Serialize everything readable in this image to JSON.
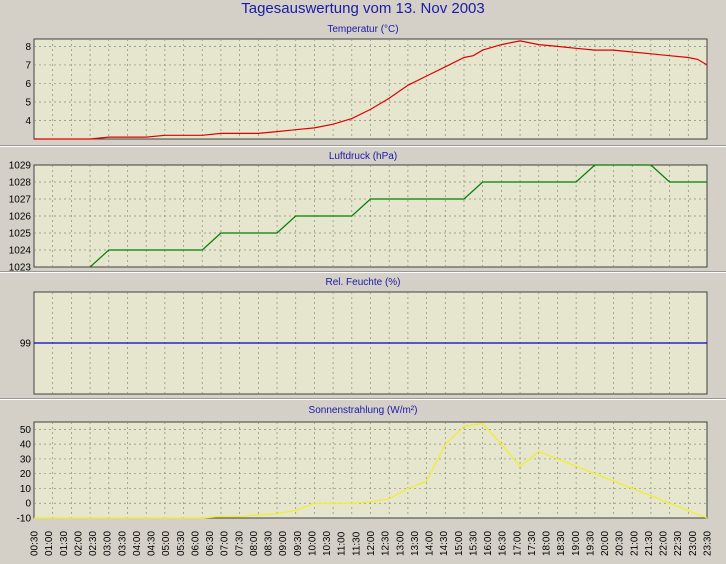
{
  "title": "Tagesauswertung vom 13. Nov 2003",
  "colors": {
    "plot_bg": "#e6e6cf",
    "grid": "#8a8a7a",
    "temperature": "#e00000",
    "pressure": "#008000",
    "humidity": "#0000cc",
    "radiation": "#f0f020"
  },
  "chart_data": [
    {
      "type": "line",
      "title": "Temperatur (°C)",
      "ylim": [
        3,
        8.4
      ],
      "yticks": [
        "4",
        "5",
        "6",
        "7",
        "8"
      ],
      "series": [
        {
          "color": "temperature",
          "x": [
            0,
            1,
            2,
            3,
            4,
            5,
            6,
            7,
            8,
            9,
            10,
            11,
            12,
            13,
            14,
            15,
            16,
            17,
            18,
            19,
            20,
            21,
            22,
            23,
            23.5,
            24,
            25,
            26,
            27,
            28,
            29,
            30,
            31,
            32,
            33,
            34,
            35,
            35.5,
            36
          ],
          "y": [
            3,
            3,
            3,
            3,
            3.1,
            3.1,
            3.1,
            3.2,
            3.2,
            3.2,
            3.3,
            3.3,
            3.3,
            3.4,
            3.5,
            3.6,
            3.8,
            4.1,
            4.6,
            5.2,
            5.9,
            6.4,
            6.9,
            7.4,
            7.5,
            7.8,
            8.1,
            8.3,
            8.1,
            8.0,
            7.9,
            7.8,
            7.8,
            7.7,
            7.6,
            7.5,
            7.4,
            7.3,
            7.0
          ]
        }
      ]
    },
    {
      "type": "line",
      "title": "Luftdruck (hPa)",
      "ylim": [
        1023,
        1029
      ],
      "yticks": [
        "1023",
        "1024",
        "1025",
        "1026",
        "1027",
        "1028",
        "1029"
      ],
      "series": [
        {
          "color": "pressure",
          "x": [
            3,
            4,
            5,
            6,
            7,
            8,
            9,
            10,
            11,
            12,
            13,
            14,
            15,
            16,
            17,
            18,
            19,
            20,
            21,
            22,
            23,
            24,
            25,
            26,
            27,
            28,
            29,
            30,
            31,
            32,
            33,
            34,
            35,
            36
          ],
          "y": [
            1023,
            1024,
            1024,
            1024,
            1024,
            1024,
            1024,
            1025,
            1025,
            1025,
            1025,
            1026,
            1026,
            1026,
            1026,
            1027,
            1027,
            1027,
            1027,
            1027,
            1027,
            1028,
            1028,
            1028,
            1028,
            1028,
            1028,
            1029,
            1029,
            1029,
            1029,
            1028,
            1028,
            1028
          ]
        }
      ]
    },
    {
      "type": "line",
      "title": "Rel. Feuchte (%)",
      "ylim": [
        98.6,
        99.4
      ],
      "yticks": [
        "99"
      ],
      "series": [
        {
          "color": "humidity",
          "x": [
            0,
            36
          ],
          "y": [
            99,
            99
          ]
        }
      ]
    },
    {
      "type": "line",
      "title": "Sonnenstrahlung (W/m²)",
      "ylim": [
        -10,
        55
      ],
      "yticks": [
        "-10",
        "0",
        "10",
        "20",
        "30",
        "40",
        "50"
      ],
      "series": [
        {
          "color": "radiation",
          "x": [
            0,
            8,
            9,
            10,
            11,
            12,
            13,
            14,
            15,
            16,
            17,
            18,
            19,
            20,
            21,
            22,
            23,
            24,
            25,
            26,
            27,
            36
          ],
          "y": [
            -10,
            -10,
            -10,
            -9,
            -9,
            -8,
            -7,
            -5,
            0,
            0,
            0,
            1,
            3,
            10,
            15,
            40,
            52,
            54,
            40,
            25,
            35,
            -10
          ]
        }
      ]
    }
  ],
  "x_labels": [
    "00:30",
    "01:00",
    "01:30",
    "02:00",
    "02:30",
    "03:00",
    "03:30",
    "04:00",
    "04:30",
    "05:00",
    "05:30",
    "06:00",
    "06:30",
    "07:00",
    "07:30",
    "08:00",
    "08:30",
    "09:00",
    "09:30",
    "10:00",
    "10:30",
    "11:00",
    "11:30",
    "12:00",
    "12:30",
    "13:00",
    "13:30",
    "14:00",
    "14:30",
    "15:00",
    "15:30",
    "16:00",
    "16:30",
    "17:00",
    "17:30",
    "18:00",
    "18:30",
    "19:00",
    "19:30",
    "20:00",
    "20:30",
    "21:00",
    "21:30",
    "22:00",
    "22:30",
    "23:00",
    "23:30"
  ]
}
